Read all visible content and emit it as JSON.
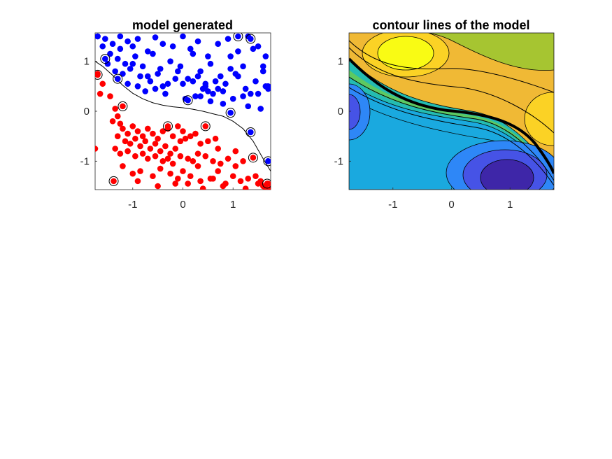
{
  "chart_data": [
    {
      "type": "scatter",
      "title": "model generated",
      "xlabel": "",
      "ylabel": "",
      "xlim": [
        -1.75,
        1.75
      ],
      "ylim": [
        -1.57,
        1.57
      ],
      "xticks": [
        "-1",
        "0",
        "1"
      ],
      "yticks": [
        "1",
        "0",
        "-1"
      ],
      "grid": false,
      "colors": {
        "class_a": "#0000ff",
        "class_b": "#ff0000",
        "boundary": "#000000"
      },
      "decision_boundary": {
        "x": [
          -1.75,
          -1.6,
          -1.4,
          -1.2,
          -1.0,
          -0.8,
          -0.6,
          -0.4,
          -0.2,
          0.0,
          0.2,
          0.4,
          0.6,
          0.8,
          1.0,
          1.2,
          1.4,
          1.6,
          1.75
        ],
        "y": [
          1.0,
          0.9,
          0.72,
          0.52,
          0.36,
          0.25,
          0.17,
          0.12,
          0.09,
          0.07,
          0.04,
          0.0,
          -0.05,
          -0.1,
          -0.2,
          -0.35,
          -0.6,
          -0.95,
          -1.2
        ]
      },
      "series": [
        {
          "class": "blue",
          "x": [
            -1.7,
            -1.55,
            -1.4,
            -1.25,
            -1.1,
            -1.0,
            -0.9,
            -0.7,
            -0.55,
            -0.4,
            -0.2,
            0.0,
            0.15,
            0.3,
            0.5,
            0.7,
            0.9,
            1.1,
            1.3,
            1.5,
            1.65,
            -1.6,
            -1.45,
            -1.3,
            -1.15,
            -0.95,
            -0.8,
            -0.6,
            -0.45,
            -0.25,
            -0.05,
            0.2,
            0.35,
            0.55,
            0.75,
            0.95,
            1.2,
            1.4,
            1.6,
            -1.5,
            -1.35,
            -1.2,
            -1.05,
            -0.85,
            -0.65,
            -0.5,
            -0.3,
            -0.1,
            0.1,
            0.3,
            0.45,
            0.65,
            0.85,
            1.05,
            1.25,
            1.45,
            1.65,
            -1.3,
            -1.1,
            -0.9,
            -0.75,
            -0.55,
            -0.35,
            0.0,
            0.25,
            0.4,
            0.6,
            0.8,
            1.0,
            1.2,
            1.5,
            1.7,
            -1.0,
            -0.7,
            -0.4,
            0.35,
            0.55,
            0.8,
            1.3,
            1.55,
            0.45,
            0.2,
            0.7,
            1.1,
            -1.25,
            1.35,
            1.6,
            -0.15,
            0.05,
            0.5,
            0.95,
            1.7,
            -1.7
          ],
          "y": [
            1.5,
            1.45,
            1.35,
            1.5,
            1.4,
            1.3,
            1.45,
            1.2,
            1.48,
            1.35,
            1.3,
            1.5,
            1.25,
            1.4,
            1.1,
            1.35,
            1.45,
            1.2,
            1.5,
            1.3,
            1.1,
            1.3,
            1.15,
            1.05,
            0.95,
            1.1,
            0.9,
            1.15,
            0.85,
            1.0,
            0.9,
            1.15,
            0.8,
            0.95,
            0.7,
            1.1,
            0.9,
            1.25,
            0.8,
            0.95,
            0.8,
            0.75,
            0.85,
            0.7,
            0.6,
            0.75,
            0.55,
            0.8,
            0.65,
            0.7,
            0.5,
            0.6,
            0.55,
            0.75,
            0.45,
            0.6,
            0.5,
            0.65,
            0.55,
            0.5,
            0.4,
            0.45,
            0.35,
            0.55,
            0.3,
            0.45,
            0.35,
            0.4,
            0.25,
            0.3,
            0.35,
            0.45,
            0.95,
            0.7,
            0.5,
            0.3,
            0.2,
            0.15,
            0.1,
            0.05,
            0.55,
            0.6,
            0.45,
            0.7,
            1.25,
            0.35,
            0.9,
            0.65,
            0.25,
            0.4,
            0.85,
            0.5,
            1.5
          ],
          "circled": [
            [
              -1.55,
              1.05
            ],
            [
              -1.3,
              0.65
            ],
            [
              0.1,
              0.22
            ],
            [
              1.1,
              1.5
            ],
            [
              1.35,
              1.45
            ],
            [
              0.95,
              -0.03
            ],
            [
              1.35,
              -0.42
            ],
            [
              1.7,
              -1.0
            ]
          ]
        },
        {
          "class": "red",
          "x": [
            -1.7,
            -1.65,
            -1.6,
            -1.45,
            -1.35,
            -1.3,
            -1.25,
            -1.2,
            -1.1,
            -1.0,
            -0.9,
            -0.8,
            -0.7,
            -0.6,
            -0.5,
            -0.4,
            -0.3,
            -0.2,
            -0.1,
            0.0,
            -1.4,
            -1.3,
            -1.15,
            -1.05,
            -0.95,
            -0.85,
            -0.75,
            -0.65,
            -0.55,
            -0.45,
            -0.35,
            -0.25,
            -0.15,
            -0.05,
            0.05,
            0.15,
            0.25,
            0.35,
            0.5,
            0.65,
            -1.35,
            -1.25,
            -1.1,
            -0.95,
            -0.8,
            -0.7,
            -0.55,
            -0.4,
            -0.3,
            -0.2,
            -0.05,
            0.1,
            0.2,
            0.3,
            0.45,
            0.6,
            0.75,
            0.9,
            1.05,
            1.2,
            -1.2,
            -1.0,
            -0.85,
            -0.6,
            -0.45,
            -0.25,
            -0.1,
            0.0,
            0.15,
            0.35,
            0.55,
            0.7,
            0.85,
            1.0,
            1.15,
            1.3,
            1.45,
            1.55,
            1.6,
            1.7,
            -0.9,
            -0.5,
            0.1,
            0.4,
            0.6,
            0.8,
            1.25,
            1.5,
            1.65,
            1.75,
            0.3,
            -0.15,
            0.7,
            1.05,
            -1.75
          ],
          "y": [
            0.75,
            0.35,
            0.55,
            0.3,
            0.05,
            -0.1,
            -0.25,
            -0.35,
            -0.45,
            -0.3,
            -0.4,
            -0.5,
            -0.35,
            -0.45,
            -0.55,
            -0.4,
            -0.35,
            -0.5,
            -0.3,
            -0.4,
            -0.2,
            -0.5,
            -0.6,
            -0.65,
            -0.55,
            -0.7,
            -0.6,
            -0.75,
            -0.65,
            -0.8,
            -0.7,
            -0.85,
            -0.75,
            -0.6,
            -0.55,
            -0.5,
            -0.45,
            -0.65,
            -0.6,
            -0.55,
            -0.75,
            -0.85,
            -0.8,
            -0.9,
            -0.85,
            -0.95,
            -0.9,
            -1.0,
            -0.95,
            -1.05,
            -0.9,
            -0.95,
            -1.0,
            -0.85,
            -0.9,
            -1.0,
            -1.05,
            -0.95,
            -1.1,
            -1.0,
            -1.1,
            -1.25,
            -1.2,
            -1.3,
            -1.15,
            -1.25,
            -1.35,
            -1.2,
            -1.3,
            -1.4,
            -1.35,
            -1.2,
            -1.45,
            -1.3,
            -1.4,
            -1.35,
            -1.3,
            -1.4,
            -1.5,
            -1.45,
            -1.4,
            -1.5,
            -1.45,
            -1.55,
            -1.35,
            -1.5,
            -1.55,
            -1.45,
            -1.55,
            -1.55,
            -1.1,
            -1.45,
            -0.75,
            -0.8,
            -0.75
          ],
          "circled": [
            [
              -1.7,
              0.73
            ],
            [
              -1.2,
              0.1
            ],
            [
              -0.3,
              -0.3
            ],
            [
              0.45,
              -0.3
            ],
            [
              1.4,
              -0.93
            ],
            [
              -1.38,
              -1.4
            ],
            [
              1.68,
              -1.45
            ]
          ]
        }
      ]
    },
    {
      "type": "contour",
      "title": "contour lines of the model",
      "xlabel": "",
      "ylabel": "",
      "xlim": [
        -1.75,
        1.75
      ],
      "ylim": [
        -1.57,
        1.57
      ],
      "xticks": [
        "-1",
        "0",
        "1"
      ],
      "yticks": [
        "1",
        "0",
        "-1"
      ],
      "colormap": [
        "#3e26a8",
        "#4653e6",
        "#2e87f7",
        "#1aa9df",
        "#24bcb2",
        "#5dc962",
        "#a6c531",
        "#f0b935",
        "#fbd225",
        "#f9fb14"
      ],
      "features": [
        {
          "kind": "maximum",
          "x": -0.95,
          "y": 1.15
        },
        {
          "kind": "maximum",
          "x": 1.75,
          "y": -0.2
        },
        {
          "kind": "minimum",
          "x": 0.85,
          "y": -1.2
        },
        {
          "kind": "minimum",
          "x": -1.75,
          "y": -0.05
        }
      ],
      "zero_level_line": "bold"
    }
  ]
}
